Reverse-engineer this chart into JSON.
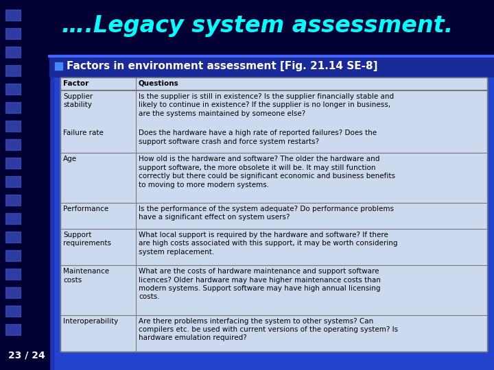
{
  "title": "….Legacy system assessment.",
  "bullet_text": "Factors in environment assessment [Fig. 21.14 SE-8]",
  "slide_number": "23 / 24",
  "bg_color": "#2233cc",
  "bg_right_color": "#3344dd",
  "title_color": "#00ffff",
  "title_underline_color": "#4466ff",
  "bullet_color": "#ffffff",
  "bullet_square_color": "#4488ff",
  "table_bg_color": "#ccd9ee",
  "table_text_color": "#000000",
  "slide_num_color": "#ffffff",
  "left_strip_color": "#000055",
  "sq_color": "#4455cc",
  "table_data": [
    [
      "Factor",
      "Questions"
    ],
    [
      "Supplier\nstability",
      "Is the supplier is still in existence? Is the supplier financially stable and\nlikely to continue in existence? If the supplier is no longer in business,\nare the systems maintained by someone else?"
    ],
    [
      "Failure rate",
      "Does the hardware have a high rate of reported failures? Does the\nsupport software crash and force system restarts?"
    ],
    [
      "Age",
      "How old is the hardware and software? The older the hardware and\nsupport software, the more obsolete it will be. It may still function\ncorrectly but there could be significant economic and business benefits\nto moving to more modern systems."
    ],
    [
      "Performance",
      "Is the performance of the system adequate? Do performance problems\nhave a significant effect on system users?"
    ],
    [
      "Support\nrequirements",
      "What local support is required by the hardware and software? If there\nare high costs associated with this support, it may be worth considering\nsystem replacement."
    ],
    [
      "Maintenance\ncosts",
      "What are the costs of hardware maintenance and support software\nlicences? Older hardware may have higher maintenance costs than\nmodern systems. Support software may have high annual licensing\ncosts."
    ],
    [
      "Interoperability",
      "Are there problems interfacing the system to other systems? Can\ncompilers etc. be used with current versions of the operating system? Is\nhardware emulation required?"
    ]
  ],
  "row_line_after": [
    0,
    2,
    3,
    4,
    5,
    6,
    7
  ]
}
